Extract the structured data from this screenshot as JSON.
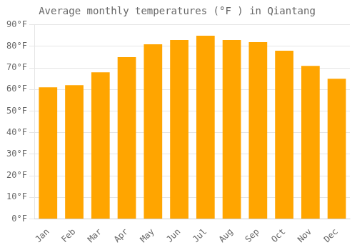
{
  "chart_data": {
    "type": "bar",
    "title": "Average monthly temperatures (°F ) in Qiantang",
    "categories": [
      "Jan",
      "Feb",
      "Mar",
      "Apr",
      "May",
      "Jun",
      "Jul",
      "Aug",
      "Sep",
      "Oct",
      "Nov",
      "Dec"
    ],
    "values": [
      61,
      62,
      68,
      75,
      81,
      83,
      85,
      83,
      82,
      78,
      71,
      65
    ],
    "color": "#FFA500",
    "ylim": [
      0,
      90
    ],
    "yticks": [
      {
        "value": 0,
        "label": "0°F"
      },
      {
        "value": 10,
        "label": "10°F"
      },
      {
        "value": 20,
        "label": "20°F"
      },
      {
        "value": 30,
        "label": "30°F"
      },
      {
        "value": 40,
        "label": "40°F"
      },
      {
        "value": 50,
        "label": "50°F"
      },
      {
        "value": 60,
        "label": "60°F"
      },
      {
        "value": 70,
        "label": "70°F"
      },
      {
        "value": 80,
        "label": "80°F"
      },
      {
        "value": 90,
        "label": "90°F"
      }
    ],
    "grid": true
  }
}
